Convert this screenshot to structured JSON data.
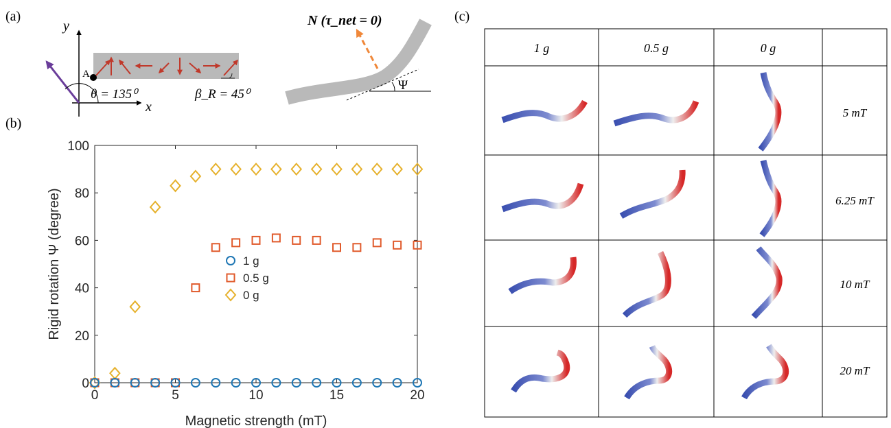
{
  "panels": {
    "a": {
      "label": "(a)",
      "theta": "θ = 135⁰",
      "beta": "β_R = 45⁰",
      "point": "A",
      "x_axis": "x",
      "y_axis": "y",
      "N": "N (τ_net = 0)",
      "psi": "Ψ"
    },
    "b": {
      "label": "(b)"
    },
    "c": {
      "label": "(c)",
      "columns": [
        "1 g",
        "0.5 g",
        "0 g"
      ],
      "rows": [
        "5 mT",
        "6.25 mT",
        "10 mT",
        "20 mT"
      ]
    }
  },
  "colors": {
    "series_1g": "#1f77b4",
    "series_05g": "#e05a2b",
    "series_0g": "#e6b12c",
    "beam": "#b9b9b9",
    "arrow": "#c0392b",
    "normal": "#f0883a",
    "magnet": "#6a3d9a"
  },
  "chart_data": {
    "type": "scatter",
    "xlabel": "Magnetic strength (mT)",
    "ylabel": "Rigid rotation Ψ (degree)",
    "xlim": [
      0,
      20
    ],
    "ylim": [
      0,
      100
    ],
    "xticks": [
      0,
      5,
      10,
      15,
      20
    ],
    "yticks": [
      0,
      20,
      40,
      60,
      80,
      100
    ],
    "legend_position": "center",
    "series": [
      {
        "name": "1 g",
        "marker": "circle",
        "x": [
          0,
          1.25,
          2.5,
          3.75,
          5,
          6.25,
          7.5,
          8.75,
          10,
          11.25,
          12.5,
          13.75,
          15,
          16.25,
          17.5,
          18.75,
          20
        ],
        "y": [
          0,
          0,
          0,
          0,
          0,
          0,
          0,
          0,
          0,
          0,
          0,
          0,
          0,
          0,
          0,
          0,
          0
        ]
      },
      {
        "name": "0.5 g",
        "marker": "square",
        "x": [
          0,
          1.25,
          2.5,
          3.75,
          5,
          6.25,
          7.5,
          8.75,
          10,
          11.25,
          12.5,
          13.75,
          15,
          16.25,
          17.5,
          18.75,
          20
        ],
        "y": [
          0,
          0,
          0,
          0,
          0,
          40,
          57,
          59,
          60,
          61,
          60,
          60,
          57,
          57,
          59,
          58,
          58
        ]
      },
      {
        "name": "0 g",
        "marker": "diamond",
        "x": [
          0,
          1.25,
          2.5,
          3.75,
          5,
          6.25,
          7.5,
          8.75,
          10,
          11.25,
          12.5,
          13.75,
          15,
          16.25,
          17.5,
          18.75,
          20
        ],
        "y": [
          0,
          4,
          32,
          74,
          83,
          87,
          90,
          90,
          90,
          90,
          90,
          90,
          90,
          90,
          90,
          90,
          90
        ]
      }
    ]
  }
}
